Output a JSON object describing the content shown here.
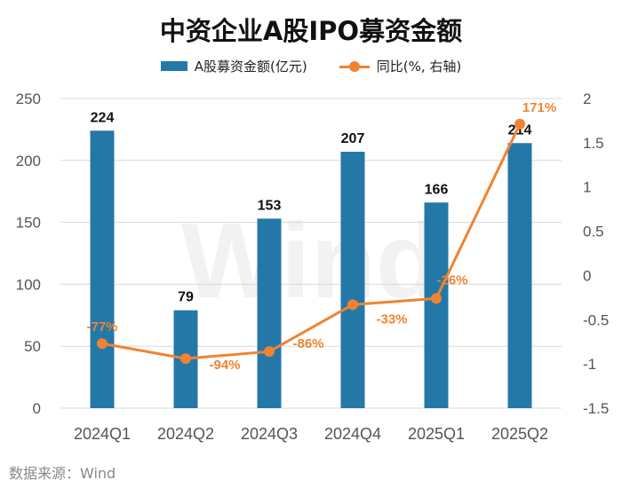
{
  "title": "中资企业A股IPO募资金额",
  "legend": {
    "bar_label": "A股募资金额(亿元)",
    "line_label": "同比(%, 右轴)"
  },
  "source": "数据来源：Wind",
  "watermark": "Wind",
  "colors": {
    "bar": "#2378a8",
    "line": "#f08331",
    "grid": "#d9d9d9",
    "axis_text": "#555555"
  },
  "chart_data": {
    "type": "bar+line",
    "categories": [
      "2024Q1",
      "2024Q2",
      "2024Q3",
      "2024Q4",
      "2025Q1",
      "2025Q2"
    ],
    "series": [
      {
        "name": "A股募资金额(亿元)",
        "type": "bar",
        "axis": "left",
        "values": [
          224,
          79,
          153,
          207,
          166,
          214
        ],
        "labels": [
          "224",
          "79",
          "153",
          "207",
          "166",
          "214"
        ]
      },
      {
        "name": "同比(%, 右轴)",
        "type": "line",
        "axis": "right",
        "values": [
          -0.77,
          -0.94,
          -0.86,
          -0.33,
          -0.26,
          1.71
        ],
        "labels": [
          "-77%",
          "-94%",
          "-86%",
          "-33%",
          "-26%",
          "171%"
        ]
      }
    ],
    "left_axis": {
      "min": 0,
      "max": 250,
      "ticks": [
        0,
        50,
        100,
        150,
        200,
        250
      ],
      "tick_labels": [
        "0",
        "50",
        "100",
        "150",
        "200",
        "250"
      ]
    },
    "right_axis": {
      "min": -1.5,
      "max": 2,
      "ticks": [
        -1.5,
        -1,
        -0.5,
        0,
        0.5,
        1,
        1.5,
        2
      ],
      "tick_labels": [
        "-1.5",
        "-1",
        "-0.5",
        "0",
        "0.5",
        "1",
        "1.5",
        "2"
      ]
    },
    "grid": true,
    "legend_position": "top-center"
  }
}
